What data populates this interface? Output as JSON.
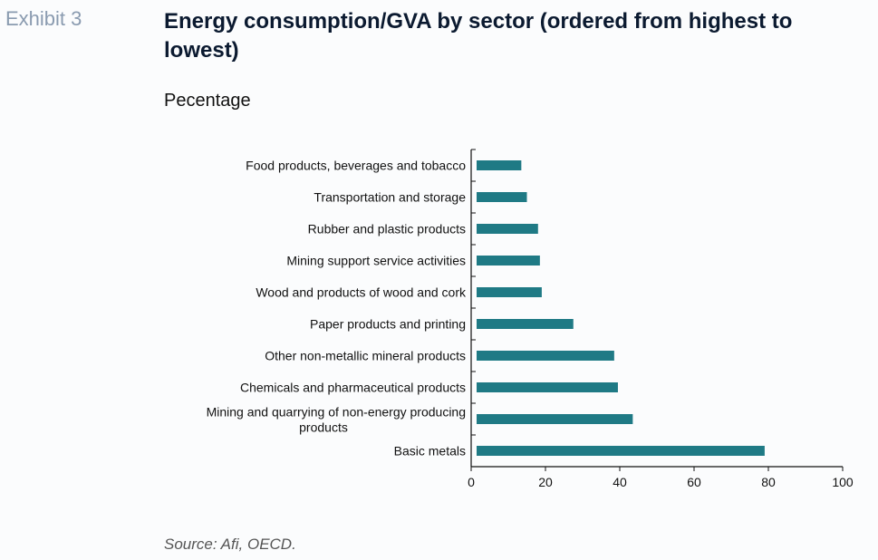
{
  "header": {
    "exhibit_label": "Exhibit 3",
    "title": "Energy consumption/GVA by sector (ordered from highest to lowest)",
    "subtitle": "Pecentage"
  },
  "footer": {
    "source": "Source: Afi, OECD."
  },
  "colors": {
    "bar": "#1f7a85",
    "axis": "#111111"
  },
  "chart_data": {
    "type": "bar",
    "orientation": "horizontal",
    "categories": [
      "Food products, beverages and tobacco",
      "Transportation and storage",
      "Rubber and plastic products",
      "Mining support service activities",
      "Wood and products of wood and cork",
      "Paper products and printing",
      "Other non-metallic mineral products",
      "Chemicals and pharmaceutical products",
      "Mining and quarrying of non-energy producing products",
      "Basic metals"
    ],
    "values": [
      13.5,
      15,
      18,
      18.5,
      19,
      27.5,
      38.5,
      39.5,
      43.5,
      79
    ],
    "xlim": [
      0,
      100
    ],
    "xticks": [
      0,
      20,
      40,
      60,
      80,
      100
    ],
    "grid": false,
    "legend": "none"
  }
}
